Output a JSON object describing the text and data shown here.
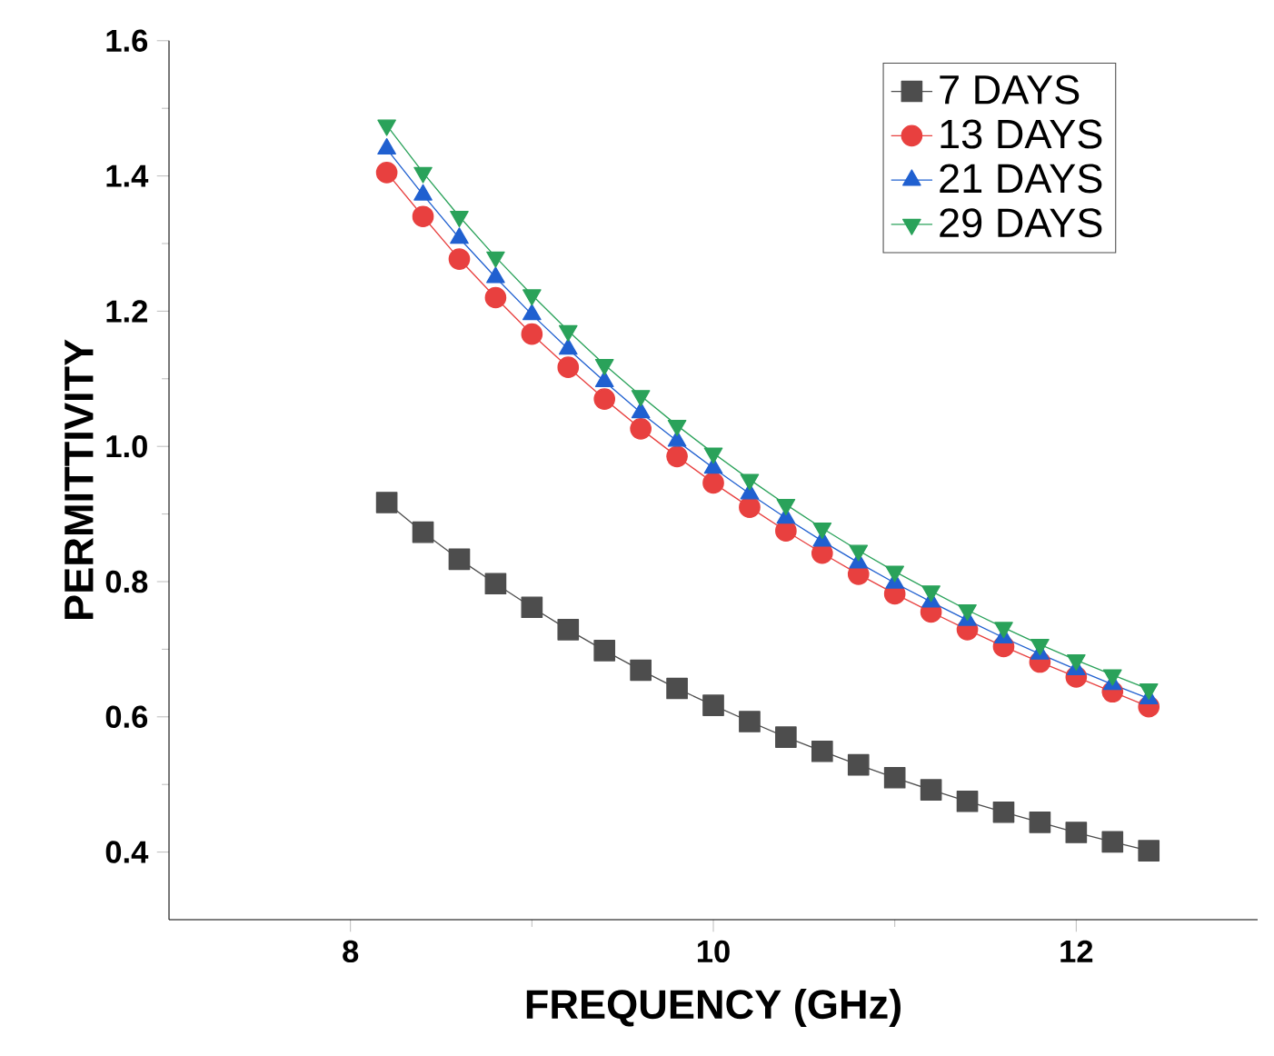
{
  "chart_data": {
    "type": "line",
    "xlabel": "FREQUENCY (GHz)",
    "ylabel": "PERMITTIVITY",
    "x": [
      8.2,
      8.4,
      8.6,
      8.8,
      9.0,
      9.2,
      9.4,
      9.6,
      9.8,
      10.0,
      10.2,
      10.4,
      10.6,
      10.8,
      11.0,
      11.2,
      11.4,
      11.6,
      11.8,
      12.0,
      12.2,
      12.4
    ],
    "series": [
      {
        "name": "7 DAYS",
        "color": "#4d4d4d",
        "marker": "square",
        "values": [
          0.917,
          0.873,
          0.833,
          0.797,
          0.762,
          0.729,
          0.698,
          0.669,
          0.642,
          0.617,
          0.593,
          0.57,
          0.549,
          0.529,
          0.51,
          0.492,
          0.475,
          0.459,
          0.444,
          0.429,
          0.415,
          0.402
        ]
      },
      {
        "name": "13 DAYS",
        "color": "#e8403f",
        "marker": "circle",
        "values": [
          1.405,
          1.34,
          1.277,
          1.22,
          1.166,
          1.117,
          1.07,
          1.026,
          0.985,
          0.946,
          0.91,
          0.875,
          0.842,
          0.811,
          0.782,
          0.755,
          0.729,
          0.704,
          0.681,
          0.659,
          0.637,
          0.615
        ]
      },
      {
        "name": "21 DAYS",
        "color": "#2060d0",
        "marker": "triangle",
        "values": [
          1.44,
          1.372,
          1.308,
          1.25,
          1.195,
          1.144,
          1.096,
          1.05,
          1.008,
          0.968,
          0.93,
          0.894,
          0.86,
          0.828,
          0.798,
          0.77,
          0.743,
          0.717,
          0.693,
          0.67,
          0.648,
          0.627
        ]
      },
      {
        "name": "29 DAYS",
        "color": "#2aa25a",
        "marker": "triangle-down",
        "values": [
          1.475,
          1.405,
          1.34,
          1.28,
          1.224,
          1.171,
          1.121,
          1.075,
          1.031,
          0.99,
          0.951,
          0.914,
          0.879,
          0.846,
          0.815,
          0.786,
          0.758,
          0.732,
          0.707,
          0.684,
          0.662,
          0.641
        ]
      }
    ],
    "xlim": [
      7,
      13
    ],
    "ylim": [
      0.3,
      1.6
    ],
    "xticks": [
      8,
      10,
      12
    ],
    "yticks": [
      0.4,
      0.6,
      0.8,
      {
        "value": 1.0,
        "label": "1.0"
      },
      1.2,
      1.4,
      1.6
    ],
    "grid": false,
    "legend": "top right",
    "line_style": "solid"
  }
}
